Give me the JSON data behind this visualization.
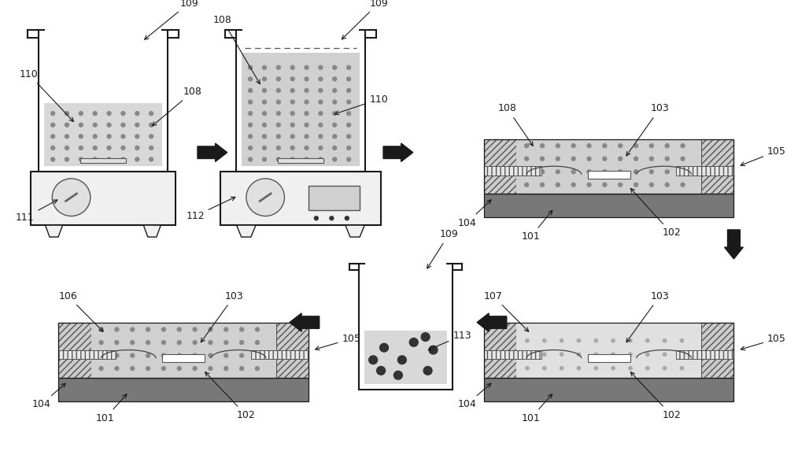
{
  "bg_color": "#ffffff",
  "gray_dark": "#808080",
  "gray_med": "#aaaaaa",
  "gray_light": "#d8d8d8",
  "gray_fill": "#c8c8c8",
  "black": "#1a1a1a",
  "white": "#ffffff",
  "label_fontsize": 9,
  "hatch_bg": "#cccccc",
  "dot_color": "#888888",
  "encap_color": "#d0d0d0",
  "encap_color2": "#e4e4e4"
}
